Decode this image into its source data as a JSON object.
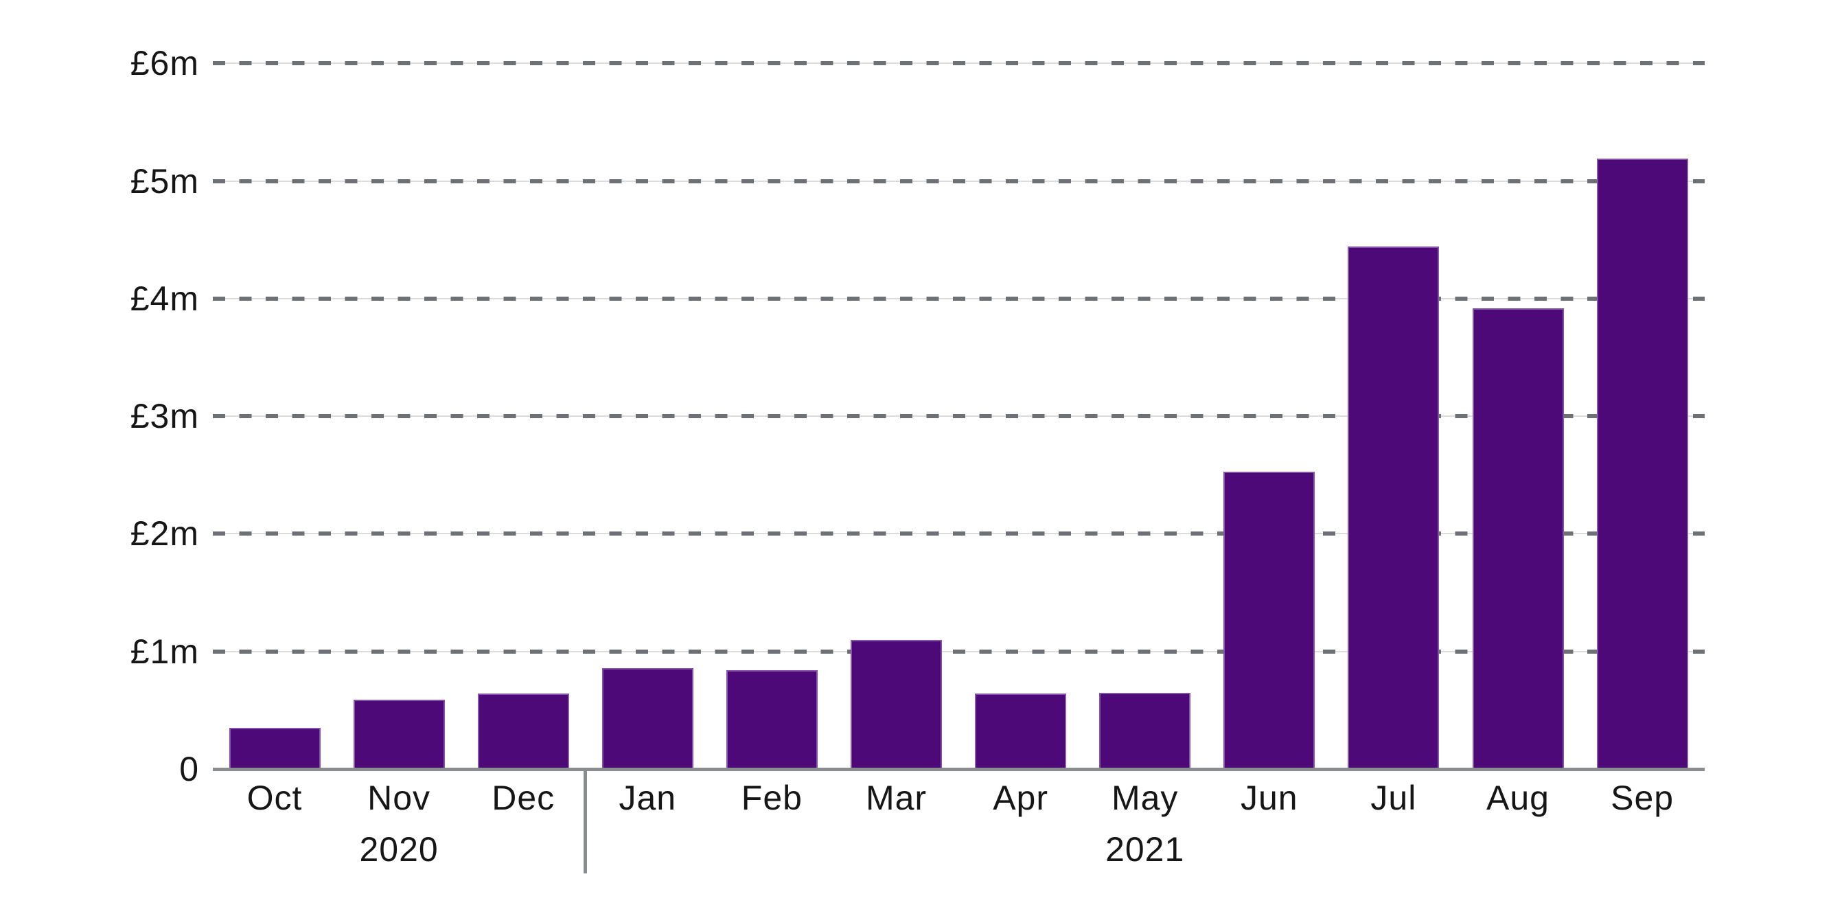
{
  "chart_data": {
    "type": "bar",
    "title": "",
    "xlabel": "",
    "ylabel": "",
    "unit": "GBP millions",
    "currency_symbol": "£",
    "categories": [
      "Oct",
      "Nov",
      "Dec",
      "Jan",
      "Feb",
      "Mar",
      "Apr",
      "May",
      "Jun",
      "Jul",
      "Aug",
      "Sep"
    ],
    "values": [
      0.35,
      0.59,
      0.64,
      0.86,
      0.84,
      1.1,
      0.64,
      0.65,
      2.53,
      4.44,
      3.92,
      5.19
    ],
    "year_groups": [
      {
        "label": "2020",
        "first_category_index": 0,
        "last_category_index": 2
      },
      {
        "label": "2021",
        "first_category_index": 3,
        "last_category_index": 11
      }
    ],
    "y_ticks": [
      {
        "value": 6,
        "label": "£6m"
      },
      {
        "value": 5,
        "label": "£5m"
      },
      {
        "value": 4,
        "label": "£4m"
      },
      {
        "value": 3,
        "label": "£3m"
      },
      {
        "value": 2,
        "label": "£2m"
      },
      {
        "value": 1,
        "label": "£1m"
      },
      {
        "value": 0,
        "label": "0"
      }
    ],
    "ylim": [
      0,
      6
    ],
    "grid": "horizontal dashed",
    "legend": "none",
    "colors": {
      "bar": "#4E0979",
      "grid_dash": "#6d7175",
      "grid_faint": "#dcdcdc",
      "axis": "#8a8d90",
      "text": "#161616",
      "background": "#ffffff"
    }
  }
}
